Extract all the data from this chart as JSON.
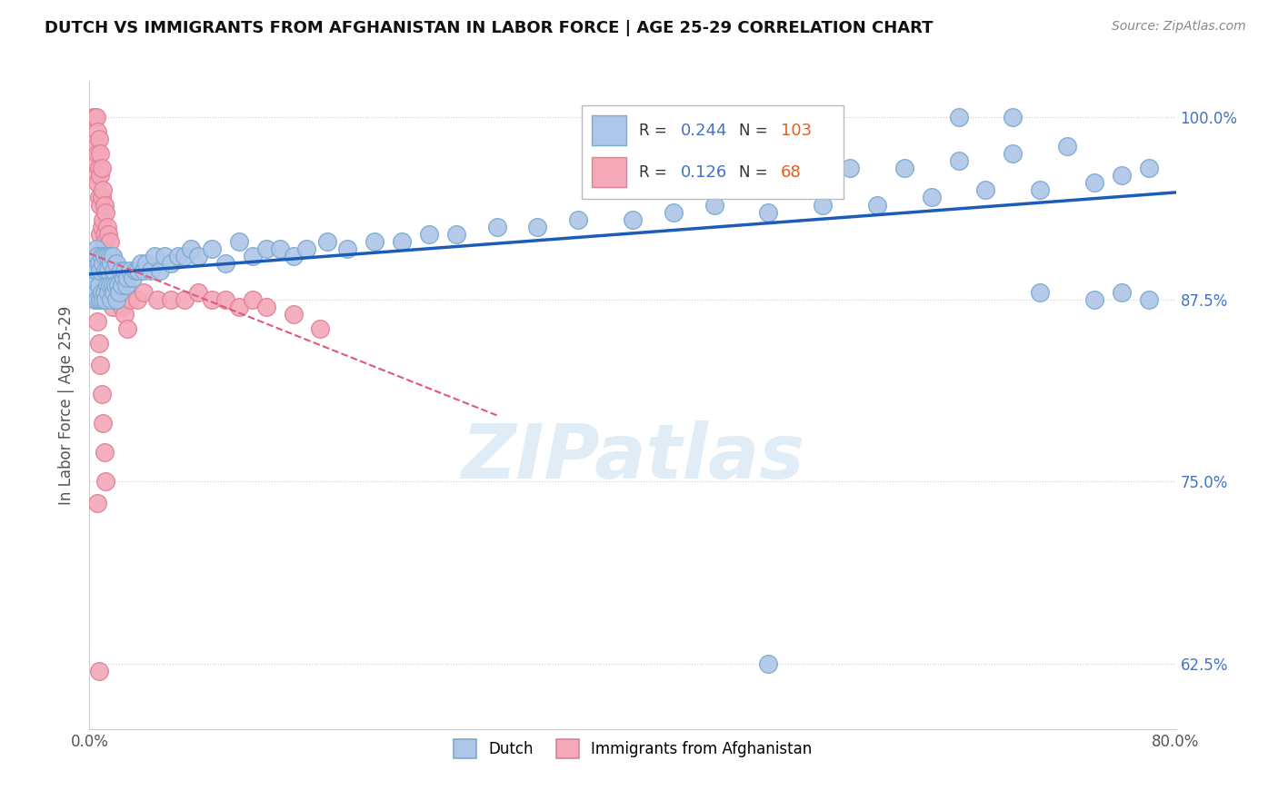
{
  "title": "DUTCH VS IMMIGRANTS FROM AFGHANISTAN IN LABOR FORCE | AGE 25-29 CORRELATION CHART",
  "source": "Source: ZipAtlas.com",
  "ylabel": "In Labor Force | Age 25-29",
  "xlim": [
    0.0,
    0.8
  ],
  "ylim": [
    0.58,
    1.025
  ],
  "yticks": [
    0.625,
    0.75,
    0.875,
    1.0
  ],
  "yticklabels": [
    "62.5%",
    "75.0%",
    "87.5%",
    "100.0%"
  ],
  "R_dutch": 0.244,
  "N_dutch": 103,
  "R_afghan": 0.126,
  "N_afghan": 68,
  "dutch_color": "#aec6e8",
  "afghan_color": "#f4a8b8",
  "dutch_edge_color": "#7aaad0",
  "afghan_edge_color": "#e08098",
  "trendline_dutch_color": "#1a5cb8",
  "trendline_afghan_color": "#e05878",
  "watermark": "ZIPatlas",
  "dutch_x": [
    0.003,
    0.004,
    0.004,
    0.005,
    0.005,
    0.005,
    0.006,
    0.006,
    0.007,
    0.007,
    0.008,
    0.008,
    0.009,
    0.009,
    0.01,
    0.01,
    0.011,
    0.011,
    0.012,
    0.012,
    0.013,
    0.013,
    0.014,
    0.014,
    0.015,
    0.015,
    0.016,
    0.016,
    0.017,
    0.017,
    0.018,
    0.018,
    0.019,
    0.02,
    0.02,
    0.021,
    0.022,
    0.023,
    0.024,
    0.025,
    0.026,
    0.027,
    0.028,
    0.03,
    0.032,
    0.034,
    0.036,
    0.038,
    0.04,
    0.042,
    0.045,
    0.048,
    0.052,
    0.055,
    0.06,
    0.065,
    0.07,
    0.075,
    0.08,
    0.09,
    0.1,
    0.11,
    0.12,
    0.13,
    0.14,
    0.15,
    0.16,
    0.175,
    0.19,
    0.21,
    0.23,
    0.25,
    0.27,
    0.3,
    0.33,
    0.36,
    0.4,
    0.43,
    0.46,
    0.5,
    0.54,
    0.58,
    0.62,
    0.66,
    0.7,
    0.74,
    0.76,
    0.78,
    0.44,
    0.48,
    0.52,
    0.56,
    0.6,
    0.64,
    0.68,
    0.72,
    0.64,
    0.68,
    0.74,
    0.78,
    0.76,
    0.7,
    0.5
  ],
  "dutch_y": [
    0.885,
    0.875,
    0.9,
    0.88,
    0.895,
    0.91,
    0.875,
    0.905,
    0.885,
    0.9,
    0.875,
    0.895,
    0.88,
    0.905,
    0.875,
    0.9,
    0.88,
    0.905,
    0.875,
    0.895,
    0.885,
    0.905,
    0.88,
    0.895,
    0.885,
    0.905,
    0.875,
    0.9,
    0.885,
    0.905,
    0.88,
    0.895,
    0.885,
    0.875,
    0.9,
    0.885,
    0.88,
    0.895,
    0.885,
    0.89,
    0.895,
    0.885,
    0.89,
    0.895,
    0.89,
    0.895,
    0.895,
    0.9,
    0.895,
    0.9,
    0.895,
    0.905,
    0.895,
    0.905,
    0.9,
    0.905,
    0.905,
    0.91,
    0.905,
    0.91,
    0.9,
    0.915,
    0.905,
    0.91,
    0.91,
    0.905,
    0.91,
    0.915,
    0.91,
    0.915,
    0.915,
    0.92,
    0.92,
    0.925,
    0.925,
    0.93,
    0.93,
    0.935,
    0.94,
    0.935,
    0.94,
    0.94,
    0.945,
    0.95,
    0.95,
    0.955,
    0.96,
    0.965,
    0.96,
    0.96,
    0.965,
    0.965,
    0.965,
    0.97,
    0.975,
    0.98,
    1.0,
    1.0,
    0.875,
    0.875,
    0.88,
    0.88,
    0.625
  ],
  "afghan_x": [
    0.003,
    0.004,
    0.004,
    0.005,
    0.005,
    0.005,
    0.006,
    0.006,
    0.006,
    0.007,
    0.007,
    0.007,
    0.008,
    0.008,
    0.008,
    0.008,
    0.009,
    0.009,
    0.009,
    0.009,
    0.01,
    0.01,
    0.01,
    0.011,
    0.011,
    0.012,
    0.012,
    0.013,
    0.013,
    0.014,
    0.014,
    0.015,
    0.015,
    0.016,
    0.016,
    0.017,
    0.017,
    0.018,
    0.019,
    0.02,
    0.022,
    0.024,
    0.026,
    0.028,
    0.03,
    0.035,
    0.04,
    0.05,
    0.06,
    0.07,
    0.08,
    0.09,
    0.1,
    0.11,
    0.12,
    0.13,
    0.15,
    0.17,
    0.005,
    0.006,
    0.007,
    0.008,
    0.009,
    0.01,
    0.011,
    0.012,
    0.006,
    0.007
  ],
  "afghan_y": [
    1.0,
    1.0,
    0.97,
    1.0,
    0.98,
    0.96,
    0.99,
    0.975,
    0.955,
    0.985,
    0.965,
    0.945,
    0.975,
    0.96,
    0.94,
    0.92,
    0.965,
    0.945,
    0.925,
    0.905,
    0.95,
    0.93,
    0.91,
    0.94,
    0.92,
    0.935,
    0.915,
    0.925,
    0.905,
    0.92,
    0.895,
    0.915,
    0.89,
    0.905,
    0.88,
    0.895,
    0.87,
    0.885,
    0.875,
    0.88,
    0.875,
    0.87,
    0.865,
    0.855,
    0.875,
    0.875,
    0.88,
    0.875,
    0.875,
    0.875,
    0.88,
    0.875,
    0.875,
    0.87,
    0.875,
    0.87,
    0.865,
    0.855,
    0.875,
    0.86,
    0.845,
    0.83,
    0.81,
    0.79,
    0.77,
    0.75,
    0.735,
    0.62
  ]
}
